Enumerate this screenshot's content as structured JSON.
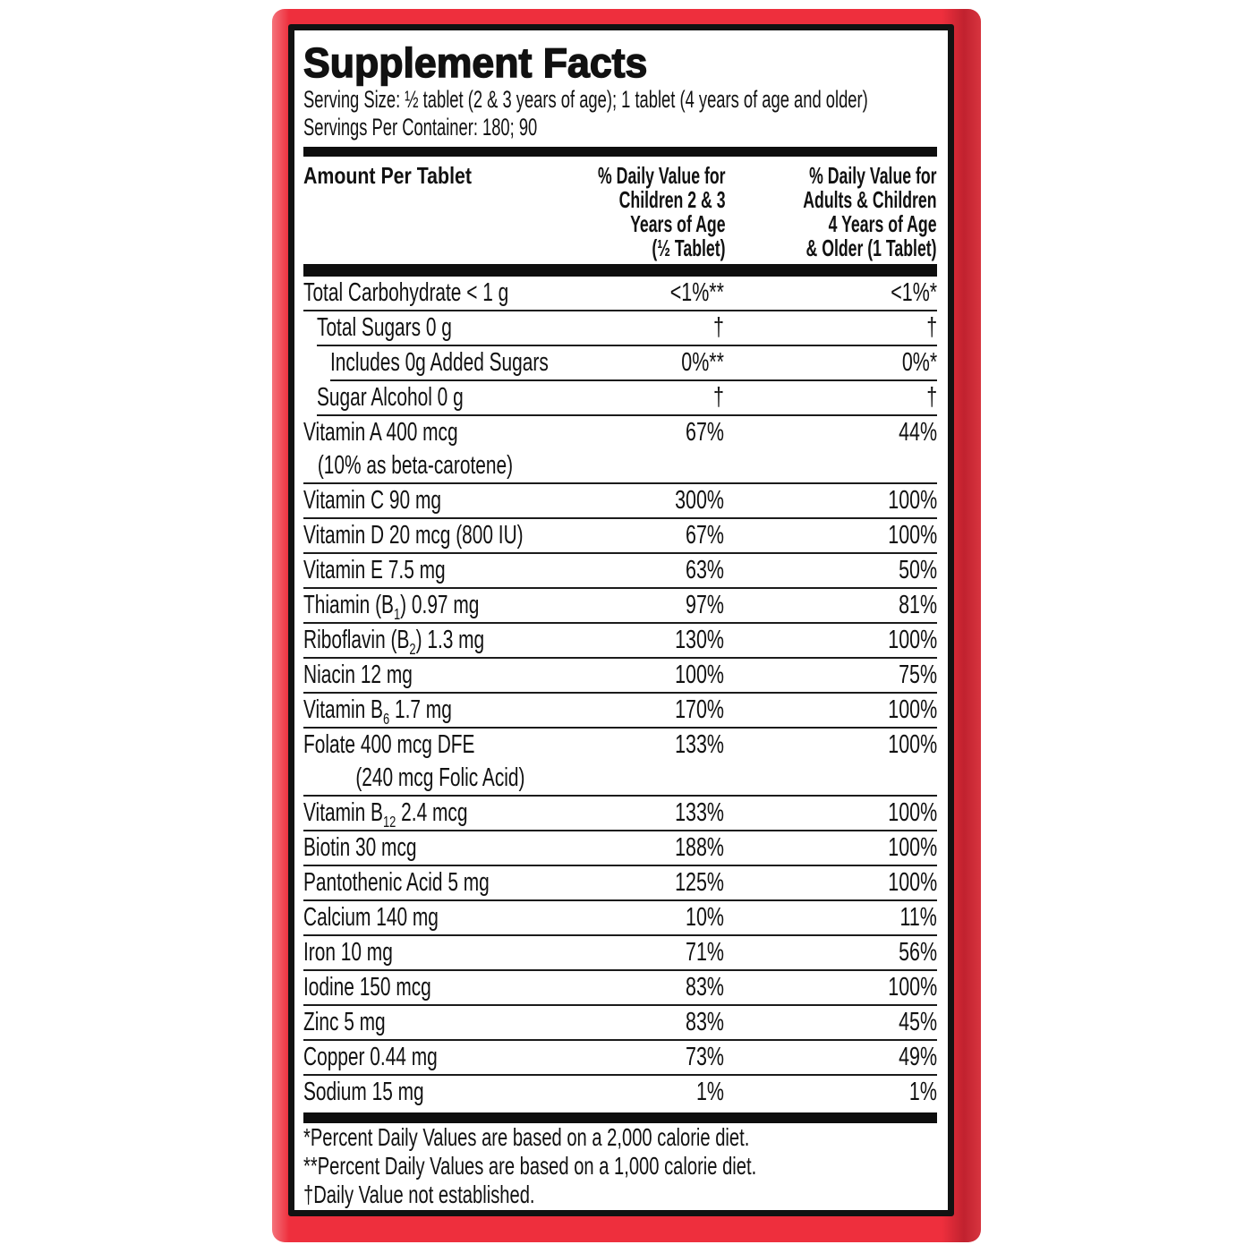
{
  "label": {
    "title": "Supplement Facts",
    "serving_size": "Serving Size: ½ tablet (2 & 3 years of age); 1 tablet (4 years of age and older)",
    "servings_per_container": "Servings Per Container: 180; 90",
    "columns": {
      "amount": "Amount Per Tablet",
      "children": "% Daily Value for\nChildren 2 & 3\nYears of Age\n(½ Tablet)",
      "adults": "% Daily Value for\nAdults & Children\n4 Years of Age\n& Older (1 Tablet)"
    },
    "rows": [
      {
        "name": "Total Carbohydrate < 1 g",
        "children": "<1%**",
        "adults": "<1%*",
        "indent": 0
      },
      {
        "name": "Total Sugars 0 g",
        "children": "†",
        "adults": "†",
        "indent": 1
      },
      {
        "name": "Includes 0g Added Sugars",
        "children": "0%**",
        "adults": "0%*",
        "indent": 2
      },
      {
        "name": "Sugar Alcohol 0 g",
        "children": "†",
        "adults": "†",
        "indent": 1
      },
      {
        "name": "Vitamin A 400 mcg",
        "line2": "(10% as beta-carotene)",
        "line2_indent": 16,
        "children": "67%",
        "adults": "44%",
        "indent": 0
      },
      {
        "name": "Vitamin C 90 mg",
        "children": "300%",
        "adults": "100%",
        "indent": 0
      },
      {
        "name": "Vitamin D 20 mcg (800 IU)",
        "children": "67%",
        "adults": "100%",
        "indent": 0
      },
      {
        "name": "Vitamin E 7.5 mg",
        "children": "63%",
        "adults": "50%",
        "indent": 0
      },
      {
        "name": "Thiamin (B_{1}) 0.97 mg",
        "children": "97%",
        "adults": "81%",
        "indent": 0
      },
      {
        "name": "Riboflavin (B_{2}) 1.3 mg",
        "children": "130%",
        "adults": "100%",
        "indent": 0
      },
      {
        "name": "Niacin 12 mg",
        "children": "100%",
        "adults": "75%",
        "indent": 0
      },
      {
        "name": "Vitamin B_{6} 1.7 mg",
        "children": "170%",
        "adults": "100%",
        "indent": 0
      },
      {
        "name": "Folate 400 mcg DFE",
        "line2": "(240 mcg Folic Acid)",
        "line2_indent": 58,
        "children": "133%",
        "adults": "100%",
        "indent": 0
      },
      {
        "name": "Vitamin B_{12} 2.4 mcg",
        "children": "133%",
        "adults": "100%",
        "indent": 0
      },
      {
        "name": "Biotin 30 mcg",
        "children": "188%",
        "adults": "100%",
        "indent": 0
      },
      {
        "name": "Pantothenic Acid 5 mg",
        "children": "125%",
        "adults": "100%",
        "indent": 0
      },
      {
        "name": "Calcium 140 mg",
        "children": "10%",
        "adults": "11%",
        "indent": 0
      },
      {
        "name": "Iron 10 mg",
        "children": "71%",
        "adults": "56%",
        "indent": 0
      },
      {
        "name": "Iodine 150 mcg",
        "children": "83%",
        "adults": "100%",
        "indent": 0
      },
      {
        "name": "Zinc 5 mg",
        "children": "83%",
        "adults": "45%",
        "indent": 0
      },
      {
        "name": "Copper 0.44 mg",
        "children": "73%",
        "adults": "49%",
        "indent": 0
      },
      {
        "name": "Sodium 15 mg",
        "children": "1%",
        "adults": "1%",
        "indent": 0
      }
    ],
    "footnotes": [
      "*Percent Daily Values are based on a 2,000 calorie diet.",
      "**Percent Daily Values are based on a 1,000 calorie diet.",
      "†Daily Value not established."
    ],
    "colors": {
      "panel_red": "#ee2f3d",
      "panel_red_dark": "#c1222f",
      "panel_red_light": "#f4737b",
      "border_black": "#121212",
      "text": "#111111"
    }
  }
}
